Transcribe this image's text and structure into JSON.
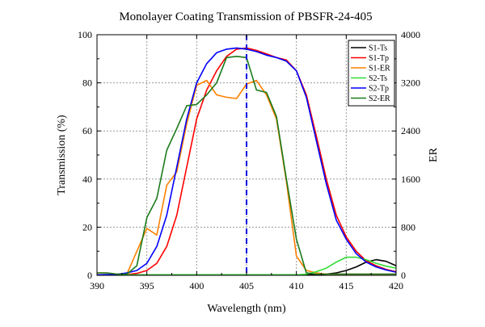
{
  "chart_data": {
    "type": "line",
    "title": "Monolayer Coating Transmission of PBSFR-24-405",
    "xlabel": "Wavelength (nm)",
    "ylabel": "Transmission (%)",
    "y2label": "ER",
    "xlim": [
      390,
      420
    ],
    "ylim": [
      0,
      100
    ],
    "y2lim": [
      0,
      4000
    ],
    "xticks": [
      "390",
      "395",
      "400",
      "405",
      "410",
      "415",
      "420"
    ],
    "yticks": [
      "0",
      "20",
      "40",
      "60",
      "80",
      "100"
    ],
    "y2ticks": [
      "0",
      "800",
      "1600",
      "2400",
      "3200",
      "4000"
    ],
    "grid": true,
    "legend_position": "top-right",
    "reference_line": {
      "x": 405,
      "style": "dashed",
      "color": "#0000dd"
    },
    "series": [
      {
        "name": "S1-Ts",
        "color": "#000000",
        "axis": "left",
        "x": [
          390,
          395,
          400,
          405,
          410,
          412,
          413,
          414,
          415,
          416,
          417,
          418,
          419,
          420
        ],
        "y": [
          0.2,
          0.2,
          0.2,
          0.2,
          0.2,
          0.3,
          0.5,
          1,
          2,
          3.5,
          5.5,
          6.5,
          5.8,
          4
        ]
      },
      {
        "name": "S1-Tp",
        "color": "#ff0000",
        "axis": "left",
        "x": [
          390,
          391,
          392,
          393,
          394,
          395,
          396,
          397,
          398,
          399,
          400,
          401,
          402,
          403,
          404,
          405,
          406,
          407,
          408,
          409,
          410,
          411,
          412,
          413,
          414,
          415,
          416,
          417,
          418,
          419,
          420
        ],
        "y": [
          0.2,
          0.2,
          0.2,
          0.3,
          0.8,
          2,
          5,
          12,
          25,
          45,
          65,
          77,
          85,
          91,
          94,
          94.5,
          93.5,
          92,
          90.5,
          89.5,
          85,
          75,
          58,
          40,
          25,
          16,
          10,
          6,
          4,
          2.5,
          1.5
        ]
      },
      {
        "name": "S1-ER",
        "color": "#ff8000",
        "axis": "right",
        "x": [
          390,
          391,
          392,
          393,
          394,
          395,
          396,
          397,
          398,
          399,
          400,
          401,
          402,
          403,
          404,
          405,
          406,
          407,
          408,
          409,
          410,
          411,
          412,
          413,
          414,
          415,
          416,
          417,
          418,
          419,
          420
        ],
        "y": [
          40,
          40,
          20,
          20,
          400,
          780,
          670,
          1500,
          1720,
          2520,
          3160,
          3240,
          3000,
          2960,
          2940,
          3180,
          3240,
          3000,
          2600,
          1560,
          320,
          80,
          40,
          20,
          20,
          20,
          20,
          20,
          20,
          20,
          20
        ]
      },
      {
        "name": "S2-Ts",
        "color": "#33dd33",
        "axis": "left",
        "x": [
          390,
          395,
          400,
          405,
          410,
          411,
          412,
          413,
          414,
          415,
          416,
          417,
          418,
          419,
          420
        ],
        "y": [
          0.2,
          0.2,
          0.2,
          0.2,
          0.2,
          0.5,
          1.5,
          3,
          5.5,
          7.5,
          7.5,
          6.5,
          5,
          3.8,
          3
        ]
      },
      {
        "name": "S2-Tp",
        "color": "#0000ff",
        "axis": "left",
        "x": [
          390,
          391,
          392,
          393,
          394,
          395,
          396,
          397,
          398,
          399,
          400,
          401,
          402,
          403,
          404,
          405,
          406,
          407,
          408,
          409,
          410,
          411,
          412,
          413,
          414,
          415,
          416,
          417,
          418,
          419,
          420
        ],
        "y": [
          0.2,
          0.3,
          0.4,
          1,
          2,
          5,
          12,
          25,
          45,
          65,
          80,
          88,
          92.5,
          94,
          94.5,
          94,
          93,
          91.5,
          90.5,
          89,
          85,
          74,
          56,
          38,
          23,
          15,
          9,
          5.5,
          3.5,
          2.2,
          1.3
        ]
      },
      {
        "name": "S2-ER",
        "color": "#1a7a1a",
        "axis": "right",
        "x": [
          390,
          391,
          392,
          393,
          394,
          395,
          396,
          397,
          398,
          399,
          400,
          401,
          402,
          403,
          404,
          405,
          406,
          407,
          408,
          409,
          410,
          411,
          412,
          413,
          414,
          415,
          416,
          417,
          418,
          419,
          420
        ],
        "y": [
          40,
          40,
          20,
          20,
          160,
          960,
          1280,
          2080,
          2440,
          2820,
          2840,
          3000,
          3200,
          3620,
          3640,
          3620,
          3080,
          3040,
          2640,
          1600,
          600,
          40,
          20,
          20,
          20,
          20,
          20,
          20,
          20,
          20,
          20
        ]
      }
    ]
  }
}
